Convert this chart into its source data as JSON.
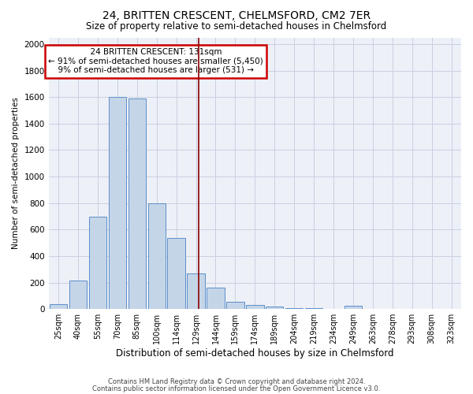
{
  "title1": "24, BRITTEN CRESCENT, CHELMSFORD, CM2 7ER",
  "title2": "Size of property relative to semi-detached houses in Chelmsford",
  "xlabel": "Distribution of semi-detached houses by size in Chelmsford",
  "ylabel": "Number of semi-detached properties",
  "footer1": "Contains HM Land Registry data © Crown copyright and database right 2024.",
  "footer2": "Contains public sector information licensed under the Open Government Licence v3.0.",
  "annotation_line1": "24 BRITTEN CRESCENT: 131sqm",
  "annotation_line2": "← 91% of semi-detached houses are smaller (5,450)",
  "annotation_line3": "9% of semi-detached houses are larger (531) →",
  "categories": [
    "25sqm",
    "40sqm",
    "55sqm",
    "70sqm",
    "85sqm",
    "100sqm",
    "114sqm",
    "129sqm",
    "144sqm",
    "159sqm",
    "174sqm",
    "189sqm",
    "204sqm",
    "219sqm",
    "234sqm",
    "249sqm",
    "263sqm",
    "278sqm",
    "293sqm",
    "308sqm",
    "323sqm"
  ],
  "bar_heights": [
    35,
    215,
    700,
    1600,
    1590,
    800,
    535,
    270,
    160,
    55,
    30,
    18,
    10,
    5,
    0,
    25,
    0,
    0,
    0,
    0,
    0
  ],
  "bar_color": "#c5d5e8",
  "bar_edge_color": "#5b8fc9",
  "vline_color": "#8b0000",
  "vline_x_index": 7.13,
  "grid_color": "#c8d0e0",
  "bg_color": "#edf0f7",
  "annotation_box_facecolor": "#ffffff",
  "annotation_box_edgecolor": "#cc0000",
  "ylim": [
    0,
    2050
  ],
  "yticks": [
    0,
    200,
    400,
    600,
    800,
    1000,
    1200,
    1400,
    1600,
    1800,
    2000
  ],
  "title1_fontsize": 10,
  "title2_fontsize": 8.5,
  "xlabel_fontsize": 8.5,
  "ylabel_fontsize": 7.5,
  "xtick_fontsize": 7,
  "ytick_fontsize": 7.5,
  "footer_fontsize": 6,
  "ann_fontsize": 7.5
}
